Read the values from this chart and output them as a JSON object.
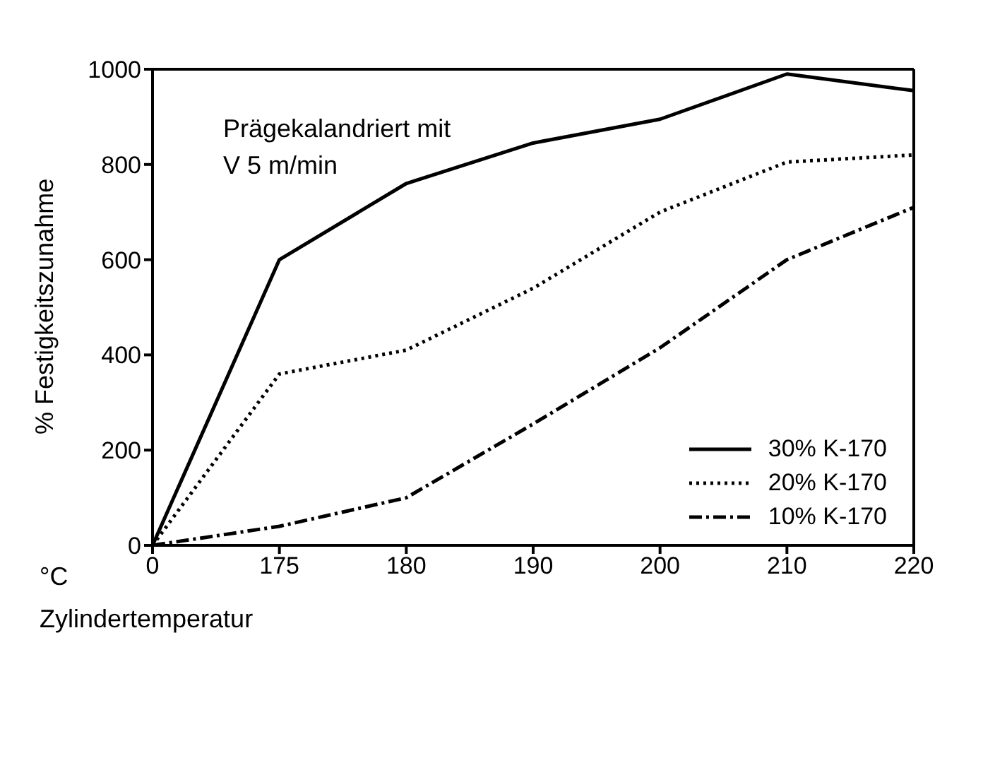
{
  "chart_data": {
    "type": "line",
    "ylabel": "% Festigkeitszunahme",
    "xlabel": "Zylindertemperatur",
    "categories": [
      "0",
      "175",
      "180",
      "190",
      "200",
      "210",
      "220"
    ],
    "series": [
      {
        "name": "30% K-170",
        "color": "#000000",
        "line_style": "solid",
        "values": [
          0,
          600,
          760,
          845,
          895,
          990,
          955
        ]
      },
      {
        "name": "20% K-170",
        "color": "#000000",
        "line_style": "dotted",
        "values": [
          0,
          360,
          410,
          540,
          700,
          805,
          820
        ]
      },
      {
        "name": "10% K-170",
        "color": "#000000",
        "line_style": "dashed",
        "values": [
          0,
          40,
          100,
          255,
          415,
          600,
          710
        ]
      }
    ],
    "ylim": [
      0,
      1000
    ],
    "yticks": [
      0,
      200,
      400,
      600,
      800,
      1000
    ],
    "legend": "bottom right",
    "marker": "none",
    "annotations": [
      "Prägekalandriert mit\nV 5 m/min",
      "°C"
    ]
  }
}
